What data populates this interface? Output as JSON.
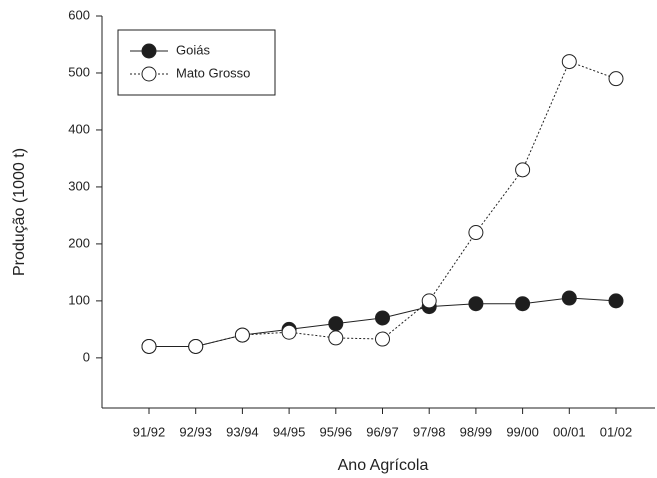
{
  "chart_data": {
    "type": "line",
    "x_label": "Ano Agrícola",
    "y_label": "Produção (1000 t)",
    "categories": [
      "91/92",
      "92/93",
      "93/94",
      "94/95",
      "95/96",
      "96/97",
      "97/98",
      "98/99",
      "99/00",
      "00/01",
      "01/02"
    ],
    "series": [
      {
        "name": "Goiás",
        "color": "#1e1e1e",
        "line_style": "solid",
        "values": [
          20,
          20,
          40,
          50,
          60,
          70,
          90,
          95,
          95,
          105,
          100
        ]
      },
      {
        "name": "Mato Grosso",
        "color": "#ffffff",
        "line_style": "dotted",
        "values": [
          20,
          20,
          40,
          45,
          35,
          33,
          100,
          220,
          330,
          520,
          490
        ]
      }
    ],
    "ylim": [
      -88,
      600
    ],
    "yticks": [
      0,
      100,
      200,
      300,
      400,
      500,
      600
    ],
    "legend": "upper-left"
  }
}
